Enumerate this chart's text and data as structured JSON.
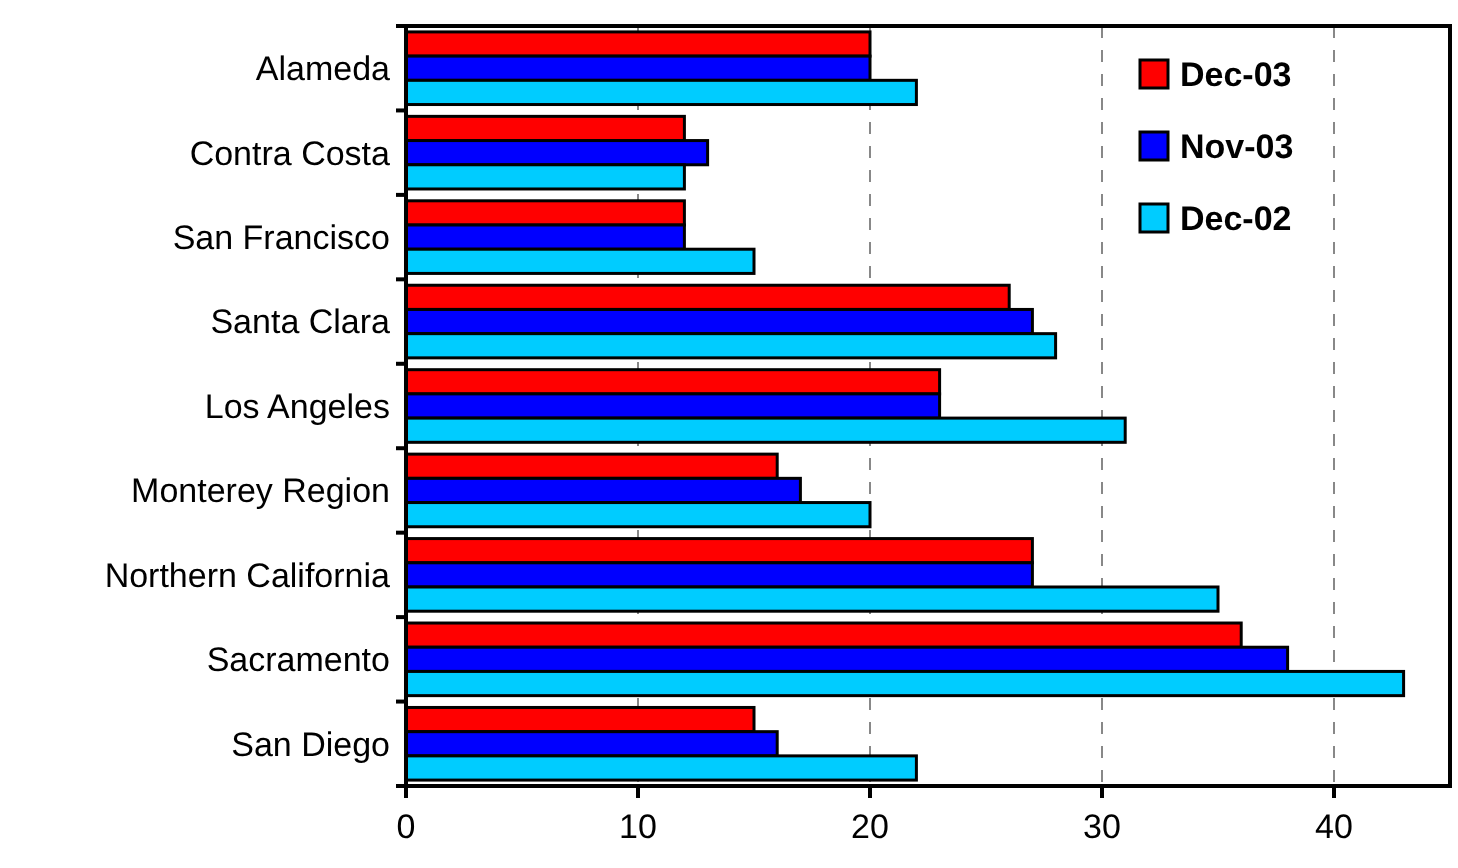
{
  "chart_data": {
    "type": "bar",
    "orientation": "horizontal",
    "categories": [
      "Alameda",
      "Contra Costa",
      "San Francisco",
      "Santa Clara",
      "Los Angeles",
      "Monterey Region",
      "Northern California",
      "Sacramento",
      "San Diego"
    ],
    "series": [
      {
        "name": "Dec-03",
        "color": "#ff0000",
        "values": [
          20,
          12,
          12,
          26,
          23,
          16,
          27,
          36,
          15
        ]
      },
      {
        "name": "Nov-03",
        "color": "#0000ff",
        "values": [
          20,
          13,
          12,
          27,
          23,
          17,
          27,
          38,
          16
        ]
      },
      {
        "name": "Dec-02",
        "color": "#00ccff",
        "values": [
          22,
          12,
          15,
          28,
          31,
          20,
          35,
          43,
          22
        ]
      }
    ],
    "xlim": [
      0,
      45
    ],
    "xticks": [
      0,
      10,
      20,
      30,
      40
    ],
    "grid": "x",
    "legend": "top right"
  }
}
